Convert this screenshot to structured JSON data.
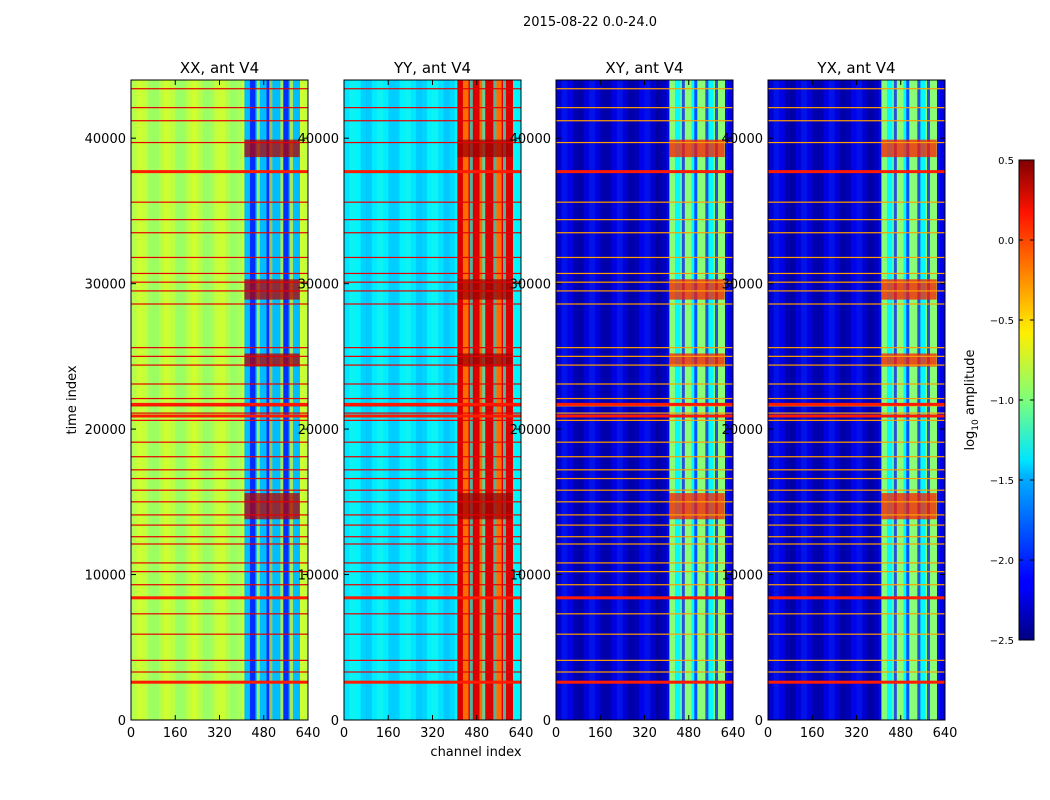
{
  "figure": {
    "suptitle": "2015-08-22 0.0-24.0",
    "xlabel": "channel index",
    "ylabel": "time index",
    "colorbar_label_prefix": "log",
    "colorbar_label_sub": "10",
    "colorbar_label_suffix": " amplitude"
  },
  "chart_data": {
    "type": "heatmap",
    "colormap": "jet",
    "panels": [
      {
        "title": "XX, ant V4",
        "baseline": 0.55,
        "band_value": 0.25,
        "bright_rows_value": 0.35
      },
      {
        "title": "YY, ant V4",
        "baseline": 0.35,
        "band_value": 0.85,
        "bright_rows_value": 0.8
      },
      {
        "title": "XY, ant V4",
        "baseline": 0.08,
        "band_value": 0.45,
        "bright_rows_value": 0.55
      },
      {
        "title": "YX, ant V4",
        "baseline": 0.08,
        "band_value": 0.45,
        "bright_rows_value": 0.55
      }
    ],
    "xlim": [
      0,
      640
    ],
    "ylim": [
      0,
      44000
    ],
    "xticks": [
      0,
      160,
      320,
      480,
      640
    ],
    "yticks": [
      0,
      10000,
      20000,
      30000,
      40000
    ],
    "band_channel_range": [
      410,
      610
    ],
    "colorbar": {
      "vmin": -2.5,
      "vmax": 0.5,
      "ticks": [
        0.5,
        0.0,
        -0.5,
        -1.0,
        -1.5,
        -2.0,
        -2.5
      ],
      "tick_labels": [
        "0.5",
        "0.0",
        "−0.5",
        "−1.0",
        "−1.5",
        "−2.0",
        "−2.5"
      ],
      "label": "log10 amplitude"
    },
    "flagged_time_rows": [
      2600,
      3300,
      4100,
      5900,
      7300,
      8400,
      9300,
      10200,
      10800,
      12100,
      12600,
      13400,
      14100,
      15000,
      15800,
      16600,
      17200,
      18100,
      19100,
      20600,
      21100,
      21600,
      22100,
      23100,
      24400,
      25000,
      25600,
      28600,
      29500,
      30100,
      30700,
      31800,
      33500,
      34400,
      35600,
      37700,
      39700,
      41200,
      42100,
      43400
    ],
    "strong_rows": [
      2600,
      8400,
      20900,
      21700,
      37700
    ]
  }
}
